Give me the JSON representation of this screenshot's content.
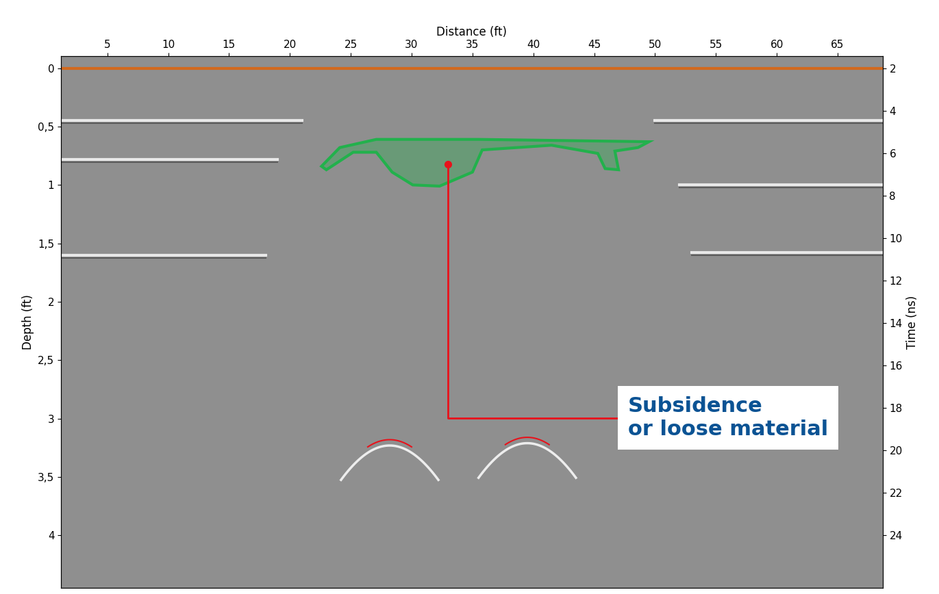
{
  "chart_data": {
    "type": "radargram",
    "x_label": "Distance (ft)",
    "y_label": "Depth (ft)",
    "y2_label": "Time (ns)",
    "xlim": [
      1.2,
      68.7
    ],
    "xticks": [
      5,
      10,
      15,
      20,
      25,
      30,
      35,
      40,
      45,
      50,
      55,
      60,
      65
    ],
    "ylim": [
      4.45,
      -0.1
    ],
    "yticks": [
      0,
      {
        "value": 0.5,
        "label": "0,5"
      },
      1,
      {
        "value": 1.5,
        "label": "1,5"
      },
      2,
      {
        "value": 2.5,
        "label": "2,5"
      },
      3,
      {
        "value": 3.5,
        "label": "3,5"
      },
      4
    ],
    "y2lim": [
      26.5,
      1.45
    ],
    "y2ticks": [
      2,
      4,
      6,
      8,
      10,
      12,
      14,
      16,
      18,
      20,
      22,
      24
    ],
    "surface": {
      "depth": 0,
      "color": "#d2691e"
    },
    "reflectors": [
      {
        "x": [
          1.2,
          21
        ],
        "depth": 0.45
      },
      {
        "x": [
          50,
          68.7
        ],
        "depth": 0.45
      },
      {
        "x": [
          1.2,
          19
        ],
        "depth": 0.78
      },
      {
        "x": [
          52,
          68.7
        ],
        "depth": 1.0
      },
      {
        "x": [
          1.2,
          18
        ],
        "depth": 1.6
      },
      {
        "x": [
          53,
          68.7
        ],
        "depth": 1.58
      }
    ],
    "zone": {
      "color": "#22b14c",
      "x": [
        22.6,
        24.1,
        27.1,
        35.5,
        49.5,
        48.6,
        46.7,
        47.0,
        45.9,
        45.3,
        41.5,
        35.8,
        35.0,
        32.3,
        30.1,
        28.4,
        27.1,
        25.2,
        23.0
      ],
      "depth": [
        0.84,
        0.68,
        0.61,
        0.61,
        0.63,
        0.68,
        0.71,
        0.87,
        0.86,
        0.73,
        0.66,
        0.7,
        0.89,
        1.01,
        1.0,
        0.89,
        0.72,
        0.72,
        0.87
      ]
    },
    "targets": {
      "color": "#e8121b",
      "x": [
        28.2,
        39.5
      ],
      "depth": [
        3.18,
        3.16
      ]
    },
    "annotation": {
      "text": "Subsidence\nor loose material",
      "x": 33.0,
      "depth": 0.82,
      "color": "#0b5394",
      "line_color": "#e8121b"
    }
  }
}
